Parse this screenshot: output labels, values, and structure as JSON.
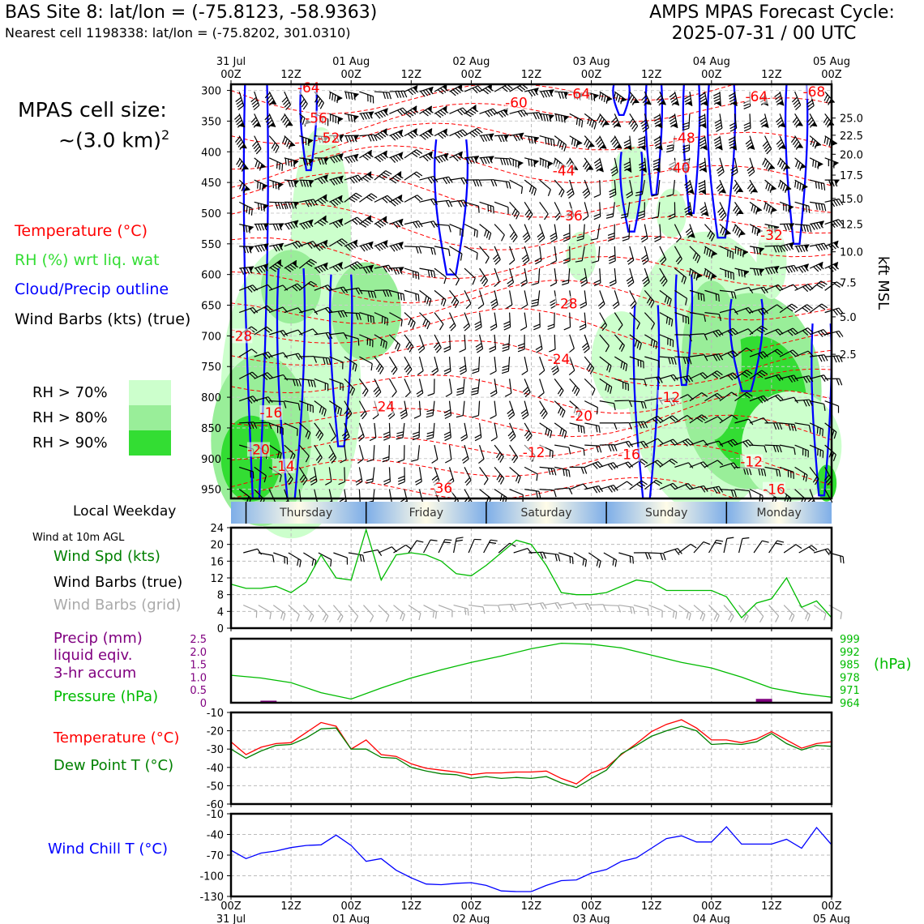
{
  "header": {
    "site_title": "BAS Site 8: lat/lon = (-75.8123, -58.9363)",
    "nearest_cell": "Nearest cell 1198338: lat/lon = (-75.8202, 301.0310)",
    "cycle_line1": "AMPS MPAS Forecast Cycle:",
    "cycle_line2": "2025-07-31 / 00 UTC"
  },
  "left_legend": {
    "cell_size_label": "MPAS cell size:",
    "cell_size_value": "~(3.0 km)",
    "cell_size_sup": "2",
    "temperature": "Temperature (°C)",
    "rh": "RH (%) wrt liq. wat",
    "cloud": "Cloud/Precip outline",
    "wind_barbs": "Wind Barbs (kts) (true)",
    "rh70": "RH > 70%",
    "rh80": "RH > 80%",
    "rh90": "RH > 90%",
    "local_weekday": "Local Weekday",
    "wind10m": "Wind at 10m AGL",
    "wind_spd": "Wind Spd (kts)",
    "wind_barbs_true": "Wind Barbs (true)",
    "wind_barbs_grid": "Wind Barbs (grid)",
    "precip_l1": "Precip (mm)",
    "precip_l2": "liquid eqiv.",
    "precip_l3": "3-hr accum",
    "pressure": "Pressure (hPa)",
    "temp2": "Temperature (°C)",
    "dewpoint": "Dew Point T (°C)",
    "windchill": "Wind Chill T (°C)",
    "kft_label": "kft MSL",
    "hpa_label": "(hPa)"
  },
  "colors": {
    "temperature": "#ff0000",
    "rh": "#33dd33",
    "cloud": "#0000ff",
    "wind": "#000000",
    "grid_wind": "#aaaaaa",
    "precip": "#800080",
    "pressure": "#00bb00",
    "dewpoint": "#008000",
    "windchill": "#0000ff",
    "rh70": "#ccffcc",
    "rh80": "#99ee99",
    "rh90": "#33dd33"
  },
  "chart_data": [
    {
      "type": "heatmap",
      "panel": "cross-section",
      "x_ticks_top": [
        {
          "line1": "31 Jul",
          "line2": "00Z"
        },
        {
          "line1": "",
          "line2": "12Z"
        },
        {
          "line1": "01 Aug",
          "line2": "00Z"
        },
        {
          "line1": "",
          "line2": "12Z"
        },
        {
          "line1": "02 Aug",
          "line2": "00Z"
        },
        {
          "line1": "",
          "line2": "12Z"
        },
        {
          "line1": "03 Aug",
          "line2": "00Z"
        },
        {
          "line1": "",
          "line2": "12Z"
        },
        {
          "line1": "04 Aug",
          "line2": "00Z"
        },
        {
          "line1": "",
          "line2": "12Z"
        },
        {
          "line1": "05 Aug",
          "line2": "00Z"
        }
      ],
      "x_hours": [
        0,
        12,
        24,
        36,
        48,
        60,
        72,
        84,
        96,
        108,
        120
      ],
      "y_ticks": [
        "300",
        "350",
        "400",
        "450",
        "500",
        "550",
        "600",
        "650",
        "700",
        "750",
        "800",
        "850",
        "900",
        "950"
      ],
      "y_ticks_values": [
        300,
        350,
        400,
        450,
        500,
        550,
        600,
        650,
        700,
        750,
        800,
        850,
        900,
        950
      ],
      "ylim": [
        290,
        965
      ],
      "right_ticks": [
        "25.0",
        "22.5",
        "20.0",
        "17.5",
        "15.0",
        "12.5",
        "10.0",
        "7.5",
        "5.0",
        "2.5"
      ],
      "right_ticks_pressure": [
        345,
        373,
        404,
        438,
        476,
        518,
        563,
        613,
        669,
        730
      ],
      "temperature_labels": [
        {
          "text": "-64",
          "hour": 15.5,
          "p": 295
        },
        {
          "text": "-60",
          "hour": 57,
          "p": 320
        },
        {
          "text": "-64",
          "hour": 69.5,
          "p": 305
        },
        {
          "text": "-64",
          "hour": 105,
          "p": 310
        },
        {
          "text": "-68",
          "hour": 116.5,
          "p": 302
        },
        {
          "text": "-56",
          "hour": 17,
          "p": 345
        },
        {
          "text": "-52",
          "hour": 19.5,
          "p": 377
        },
        {
          "text": "-48",
          "hour": 90.5,
          "p": 377
        },
        {
          "text": "-44",
          "hour": 66.5,
          "p": 431
        },
        {
          "text": "-40",
          "hour": 89.5,
          "p": 426
        },
        {
          "text": "-36",
          "hour": 68,
          "p": 504
        },
        {
          "text": "-32",
          "hour": 108,
          "p": 536
        },
        {
          "text": "-28",
          "hour": 67,
          "p": 647
        },
        {
          "text": "-28",
          "hour": 2,
          "p": 700
        },
        {
          "text": "-24",
          "hour": 65.5,
          "p": 738
        },
        {
          "text": "-12",
          "hour": 87.5,
          "p": 800
        },
        {
          "text": "-16",
          "hour": 8,
          "p": 825
        },
        {
          "text": "-24",
          "hour": 30.5,
          "p": 815
        },
        {
          "text": "-20",
          "hour": 70,
          "p": 830
        },
        {
          "text": "-20",
          "hour": 5.5,
          "p": 885
        },
        {
          "text": "-12",
          "hour": 60.5,
          "p": 890
        },
        {
          "text": "-16",
          "hour": 79.5,
          "p": 893
        },
        {
          "text": "-12",
          "hour": 104,
          "p": 905
        },
        {
          "text": "-14",
          "hour": 10.5,
          "p": 912
        },
        {
          "text": "-36",
          "hour": 42,
          "p": 948
        },
        {
          "text": "-16",
          "hour": 108.5,
          "p": 950
        }
      ]
    },
    {
      "type": "table",
      "panel": "local-weekday",
      "labels": [
        "Thursday",
        "Friday",
        "Saturday",
        "Sunday",
        "Monday"
      ],
      "center_hours": [
        8,
        20,
        32,
        44,
        56
      ],
      "boundary_hours": [
        2,
        14,
        26,
        38,
        50
      ]
    },
    {
      "type": "line",
      "panel": "wind-speed",
      "ylim": [
        0,
        24
      ],
      "yticks": [
        0,
        4,
        8,
        12,
        16,
        20,
        24
      ],
      "x": [
        0,
        3,
        6,
        9,
        12,
        15,
        18,
        21,
        24,
        27,
        30,
        33,
        36,
        39,
        42,
        45,
        48,
        51,
        54,
        57,
        60,
        63,
        66,
        69,
        72,
        75,
        78,
        81,
        84,
        87,
        90,
        93,
        96,
        99,
        102,
        105,
        108,
        111,
        114,
        117,
        120
      ],
      "series": [
        {
          "name": "Wind Spd (kts)",
          "values": [
            10.5,
            9.5,
            9.5,
            10,
            8.5,
            11,
            17.5,
            12,
            11.5,
            23.5,
            11.5,
            17.5,
            18,
            17.5,
            16,
            13,
            12.5,
            15,
            18,
            21,
            20,
            15,
            8.5,
            8,
            8,
            8.5,
            10,
            11.5,
            11,
            9,
            9,
            9,
            9,
            7.5,
            2.5,
            6,
            7,
            12,
            5,
            6.5,
            2.5
          ]
        }
      ]
    },
    {
      "type": "line",
      "panel": "precip-pressure",
      "ylim_left": [
        0,
        2.5
      ],
      "yticks_left": [
        "0",
        "0.5",
        "1.0",
        "1.5",
        "2.0",
        "2.5"
      ],
      "ylim_right": [
        964,
        999
      ],
      "yticks_right": [
        "999",
        "992",
        "985",
        "978",
        "971",
        "964"
      ],
      "precip_bars": [
        {
          "hour": 7.5,
          "value": 0.08
        },
        {
          "hour": 106.5,
          "value": 0.15
        }
      ],
      "x": [
        0,
        6,
        12,
        18,
        24,
        30,
        36,
        42,
        48,
        54,
        60,
        66,
        72,
        78,
        84,
        90,
        96,
        102,
        108,
        114,
        120
      ],
      "series": [
        {
          "name": "Pressure (hPa)",
          "values": [
            979,
            977.5,
            975,
            969.5,
            966,
            972,
            977.5,
            982,
            986,
            989.5,
            993.5,
            996.5,
            996,
            994,
            990,
            986,
            983,
            978,
            972,
            969,
            967
          ]
        }
      ]
    },
    {
      "type": "line",
      "panel": "temperature-dewpoint",
      "ylim": [
        -60,
        -10
      ],
      "yticks": [
        -60,
        -50,
        -40,
        -30,
        -20,
        -10
      ],
      "x": [
        0,
        3,
        6,
        9,
        12,
        15,
        18,
        21,
        24,
        27,
        30,
        33,
        36,
        39,
        42,
        45,
        48,
        51,
        54,
        57,
        60,
        63,
        66,
        69,
        72,
        75,
        78,
        81,
        84,
        87,
        90,
        93,
        96,
        99,
        102,
        105,
        108,
        111,
        114,
        117,
        120
      ],
      "series": [
        {
          "name": "Temperature (°C)",
          "values": [
            -26,
            -33,
            -29,
            -27,
            -26.5,
            -21,
            -15.5,
            -17.5,
            -30,
            -25,
            -33,
            -34,
            -38,
            -40.5,
            -41.5,
            -42.5,
            -44,
            -43,
            -43,
            -42.5,
            -42.5,
            -42,
            -46,
            -49,
            -43,
            -40,
            -33,
            -27,
            -20.5,
            -16.5,
            -14,
            -18.5,
            -25,
            -25,
            -26.5,
            -24.5,
            -20.5,
            -25,
            -29.5,
            -27,
            -26
          ]
        },
        {
          "name": "Dew Point T (°C)",
          "values": [
            -30,
            -35,
            -31,
            -28,
            -27.5,
            -24,
            -19,
            -18.5,
            -30,
            -30,
            -34.5,
            -35,
            -40,
            -42,
            -43.5,
            -44,
            -46,
            -45,
            -46,
            -45.5,
            -46,
            -45,
            -48.5,
            -51,
            -46,
            -41.5,
            -32.5,
            -28,
            -23,
            -20,
            -17.5,
            -20,
            -27.5,
            -27,
            -27.5,
            -26,
            -21.5,
            -27,
            -30.5,
            -28,
            -28.5
          ]
        }
      ]
    },
    {
      "type": "line",
      "panel": "wind-chill",
      "ylim": [
        -130,
        -10
      ],
      "yticks": [
        -130,
        -100,
        -70,
        -40,
        -10
      ],
      "x": [
        0,
        3,
        6,
        9,
        12,
        15,
        18,
        21,
        24,
        27,
        30,
        33,
        36,
        39,
        42,
        45,
        48,
        51,
        54,
        57,
        60,
        63,
        66,
        69,
        72,
        75,
        78,
        81,
        84,
        87,
        90,
        93,
        96,
        99,
        102,
        105,
        108,
        111,
        114,
        117,
        120
      ],
      "series": [
        {
          "name": "Wind Chill T (°C)",
          "values": [
            -63,
            -75,
            -67,
            -64,
            -59,
            -56,
            -55,
            -41,
            -56,
            -79,
            -75,
            -92,
            -103,
            -112,
            -113,
            -111,
            -110,
            -114,
            -122,
            -123,
            -123,
            -114,
            -107,
            -106,
            -96,
            -91,
            -79,
            -74,
            -60,
            -46,
            -42,
            -51,
            -51,
            -29,
            -54,
            -54,
            -54,
            -47,
            -60,
            -30,
            -55
          ]
        }
      ]
    },
    {
      "type": "table",
      "panel": "bottom-axis",
      "x_ticks_bottom": [
        {
          "line1": "00Z",
          "line2": "31 Jul"
        },
        {
          "line1": "12Z",
          "line2": ""
        },
        {
          "line1": "00Z",
          "line2": "01 Aug"
        },
        {
          "line1": "12Z",
          "line2": ""
        },
        {
          "line1": "00Z",
          "line2": "02 Aug"
        },
        {
          "line1": "12Z",
          "line2": ""
        },
        {
          "line1": "00Z",
          "line2": "03 Aug"
        },
        {
          "line1": "12Z",
          "line2": ""
        },
        {
          "line1": "00Z",
          "line2": "04 Aug"
        },
        {
          "line1": "12Z",
          "line2": ""
        },
        {
          "line1": "00Z",
          "line2": "05 Aug"
        }
      ]
    }
  ]
}
